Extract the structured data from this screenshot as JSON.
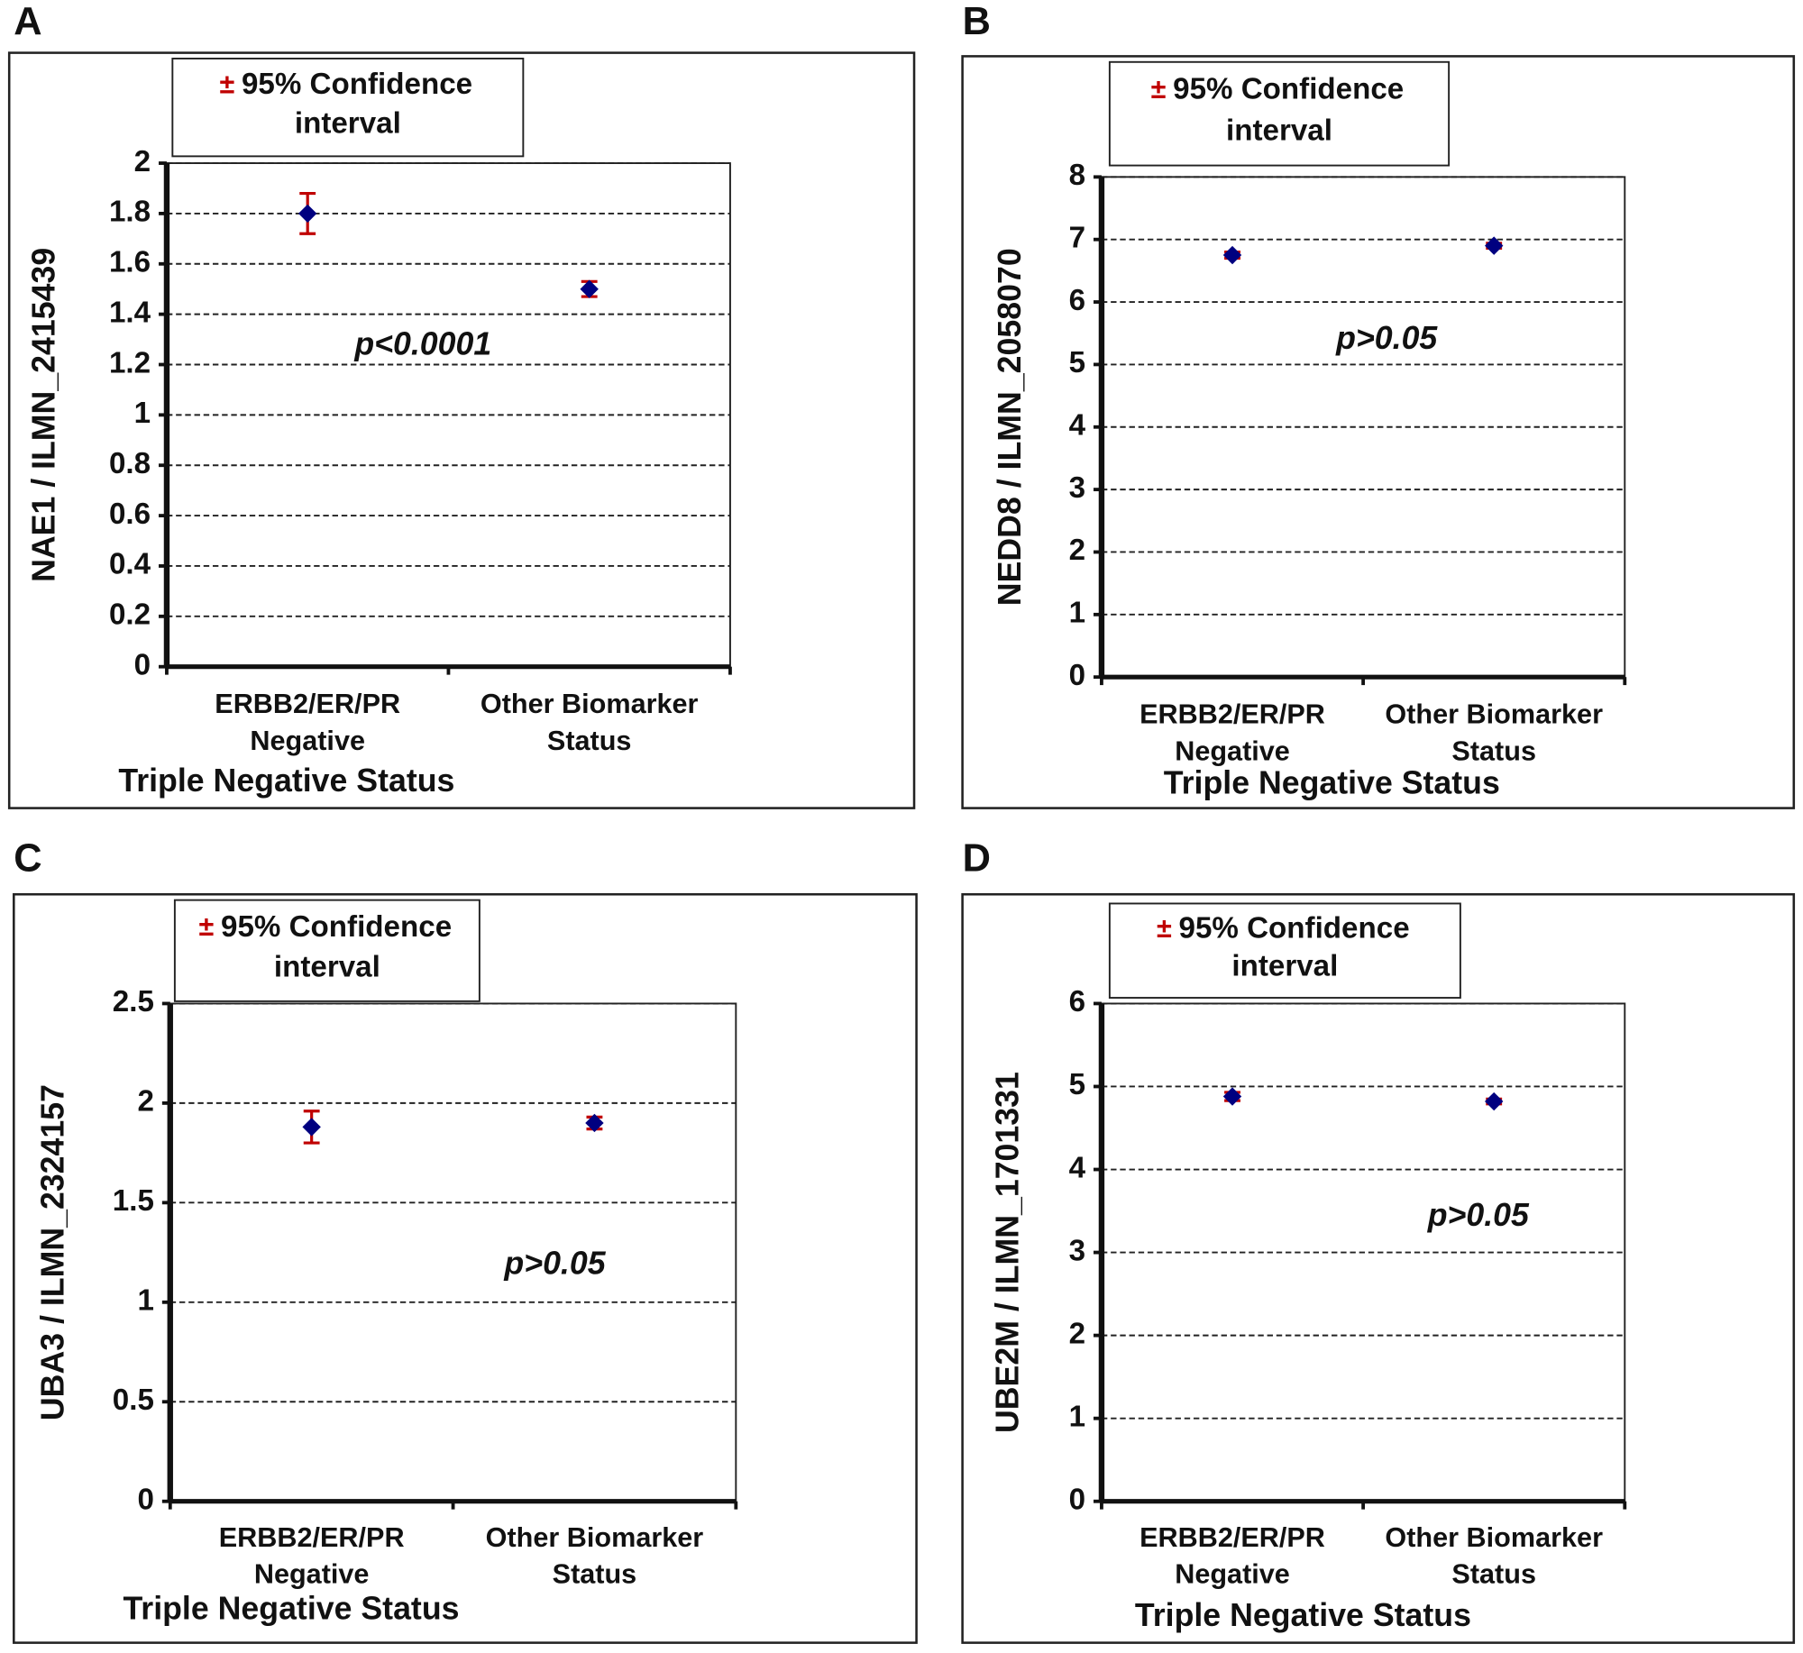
{
  "chart_data": [
    {
      "type": "errorbar",
      "panel": "A",
      "legend_symbol": "±",
      "legend_lines": [
        "95% Confidence",
        "interval"
      ],
      "ylabel": "NAE1 / ILMN_2415439",
      "xlabel": "Triple Negative Status",
      "annotation": "p<0.0001",
      "categories": [
        "ERBB2/ER/PR Negative",
        "Other Biomarker Status"
      ],
      "values": [
        1.8,
        1.5
      ],
      "errors": [
        0.08,
        0.03
      ],
      "ylim": [
        0,
        2
      ],
      "yticks": [
        0,
        0.2,
        0.4,
        0.6,
        0.8,
        1,
        1.2,
        1.4,
        1.6,
        1.8,
        2
      ],
      "grid": true,
      "color": "#000080",
      "error_color": "#c00000"
    },
    {
      "type": "errorbar",
      "panel": "B",
      "legend_symbol": "±",
      "legend_lines": [
        "95% Confidence",
        "interval"
      ],
      "ylabel": "NEDD8 / ILMN_2058070",
      "xlabel": "Triple Negative Status",
      "annotation": "p>0.05",
      "categories": [
        "ERBB2/ER/PR Negative",
        "Other Biomarker Status"
      ],
      "values": [
        6.75,
        6.9
      ],
      "errors": [
        0.05,
        0.04
      ],
      "ylim": [
        0,
        8
      ],
      "yticks": [
        0,
        1,
        2,
        3,
        4,
        5,
        6,
        7,
        8
      ],
      "grid": true,
      "color": "#000080",
      "error_color": "#c00000"
    },
    {
      "type": "errorbar",
      "panel": "C",
      "legend_symbol": "±",
      "legend_lines": [
        "95% Confidence",
        "interval"
      ],
      "ylabel": "UBA3 / ILMN_2324157",
      "xlabel": "Triple Negative Status",
      "annotation": "p>0.05",
      "categories": [
        "ERBB2/ER/PR Negative",
        "Other Biomarker Status"
      ],
      "values": [
        1.88,
        1.9
      ],
      "errors": [
        0.08,
        0.03
      ],
      "ylim": [
        0,
        2.5
      ],
      "yticks": [
        0,
        0.5,
        1,
        1.5,
        2,
        2.5
      ],
      "grid": true,
      "color": "#000080",
      "error_color": "#c00000"
    },
    {
      "type": "errorbar",
      "panel": "D",
      "legend_symbol": "±",
      "legend_lines": [
        "95% Confidence",
        "interval"
      ],
      "ylabel": "UBE2M / ILMN_1701331",
      "xlabel": "Triple Negative Status",
      "annotation": "p>0.05",
      "categories": [
        "ERBB2/ER/PR Negative",
        "Other Biomarker Status"
      ],
      "values": [
        4.88,
        4.82
      ],
      "errors": [
        0.05,
        0.03
      ],
      "ylim": [
        0,
        6
      ],
      "yticks": [
        0,
        1,
        2,
        3,
        4,
        5,
        6
      ],
      "grid": true,
      "color": "#000080",
      "error_color": "#c00000"
    }
  ]
}
